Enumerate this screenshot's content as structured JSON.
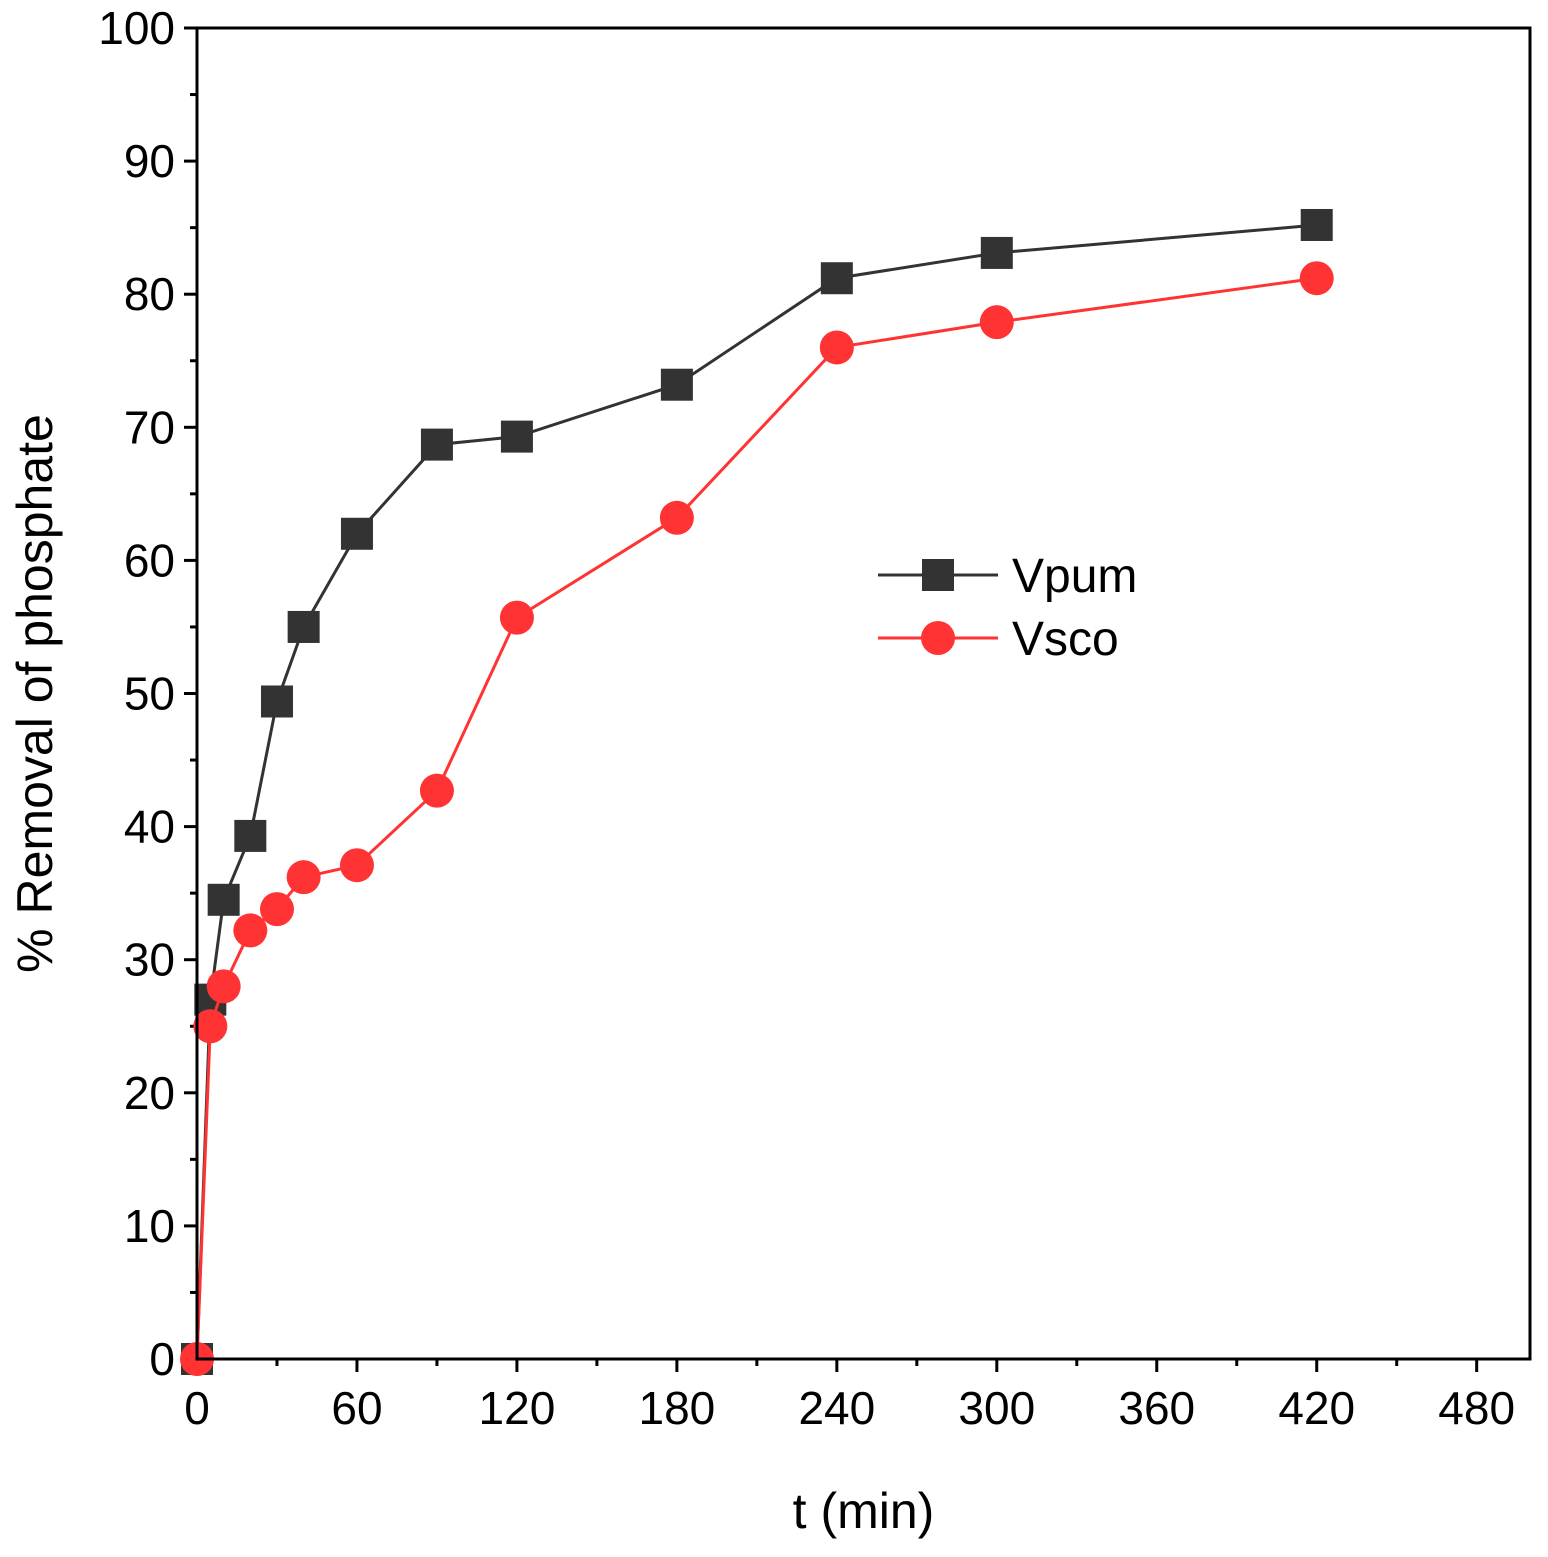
{
  "chart_data": {
    "type": "line",
    "title": "",
    "xlabel": "t (min)",
    "ylabel": "% Removal of phosphate",
    "xlim": [
      0,
      500
    ],
    "ylim": [
      0,
      100
    ],
    "xticks": [
      0,
      60,
      120,
      180,
      240,
      300,
      360,
      420,
      480
    ],
    "yticks": [
      0,
      10,
      20,
      30,
      40,
      50,
      60,
      70,
      80,
      90,
      100
    ],
    "grid": false,
    "legend_position": "center-right",
    "series": [
      {
        "name": "Vpum",
        "color": "#333333",
        "marker": "square",
        "x": [
          0,
          5,
          10,
          20,
          30,
          40,
          60,
          90,
          120,
          180,
          240,
          300,
          420
        ],
        "y": [
          0,
          27,
          34.5,
          39.3,
          49.4,
          55,
          62,
          68.7,
          69.3,
          73.2,
          81.2,
          83.1,
          85.2
        ]
      },
      {
        "name": "Vsco",
        "color": "#ff3333",
        "marker": "circle",
        "x": [
          0,
          5,
          10,
          20,
          30,
          40,
          60,
          90,
          120,
          180,
          240,
          300,
          420
        ],
        "y": [
          0,
          25,
          28,
          32.2,
          33.8,
          36.2,
          37.1,
          42.7,
          55.7,
          63.2,
          76,
          77.9,
          81.2
        ]
      }
    ]
  }
}
